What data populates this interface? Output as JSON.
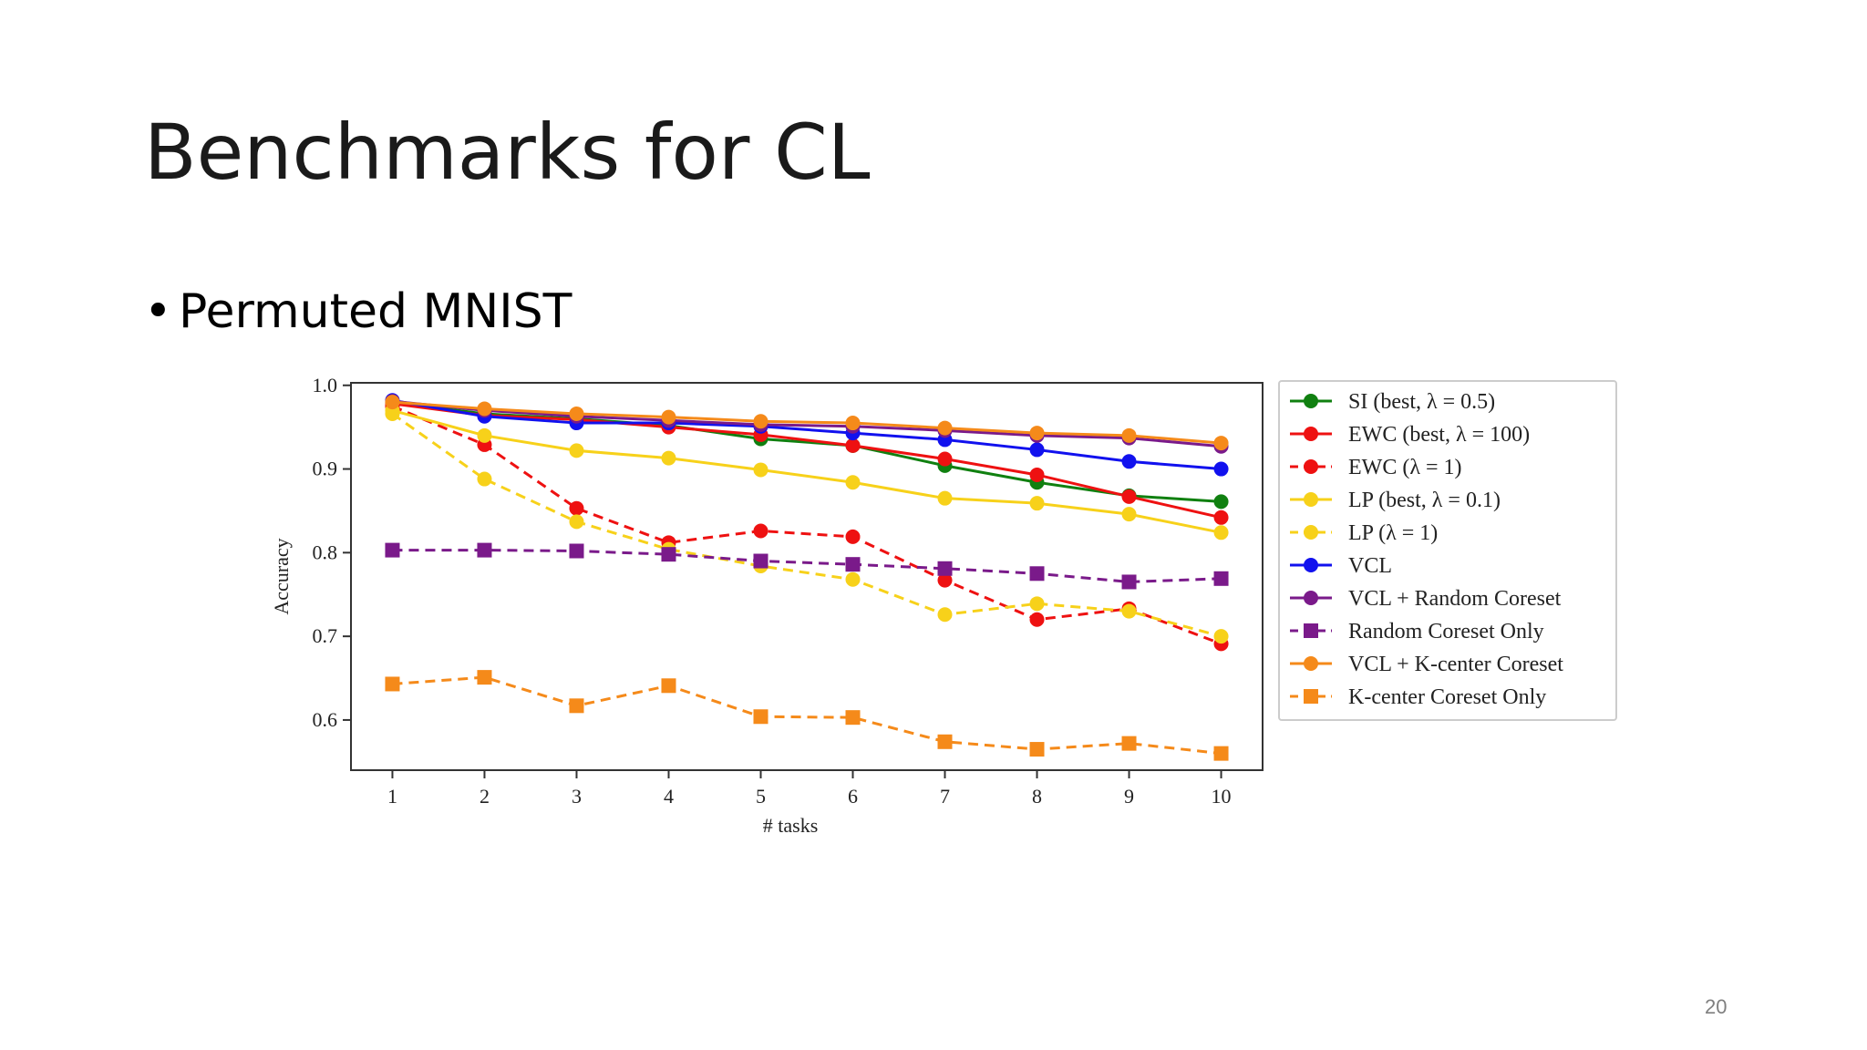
{
  "slide": {
    "title": "Benchmarks for CL",
    "bullet_marker": "•",
    "bullet_text": "Permuted MNIST",
    "page_number": "20"
  },
  "chart_data": {
    "type": "line",
    "title": "",
    "xlabel": "# tasks",
    "ylabel": "Accuracy",
    "x": [
      1,
      2,
      3,
      4,
      5,
      6,
      7,
      8,
      9,
      10
    ],
    "x_ticks": [
      "1",
      "2",
      "3",
      "4",
      "5",
      "6",
      "7",
      "8",
      "9",
      "10"
    ],
    "y_ticks": [
      "0.6",
      "0.7",
      "0.8",
      "0.9",
      "1.0"
    ],
    "y_tick_values": [
      0.6,
      0.7,
      0.8,
      0.9,
      1.0
    ],
    "ylim": [
      0.54,
      1.003
    ],
    "xlim": [
      0.55,
      10.45
    ],
    "grid": false,
    "legend_position": "outside-right",
    "series": [
      {
        "name": "SI (best, λ = 0.5)",
        "color": "#108010",
        "dash": "solid",
        "marker": "circle",
        "values": [
          0.98,
          0.966,
          0.96,
          0.952,
          0.936,
          0.928,
          0.904,
          0.884,
          0.868,
          0.861
        ]
      },
      {
        "name": "EWC (best, λ = 100)",
        "color": "#ee1111",
        "dash": "solid",
        "marker": "circle",
        "values": [
          0.978,
          0.964,
          0.959,
          0.95,
          0.941,
          0.928,
          0.912,
          0.893,
          0.867,
          0.842
        ]
      },
      {
        "name": "EWC (λ = 1)",
        "color": "#ee1111",
        "dash": "dashed",
        "marker": "circle",
        "values": [
          0.975,
          0.929,
          0.853,
          0.812,
          0.826,
          0.819,
          0.767,
          0.72,
          0.733,
          0.691
        ]
      },
      {
        "name": "LP (best, λ = 0.1)",
        "color": "#f7d11a",
        "dash": "solid",
        "marker": "circle",
        "values": [
          0.97,
          0.94,
          0.922,
          0.913,
          0.899,
          0.884,
          0.865,
          0.859,
          0.846,
          0.824
        ]
      },
      {
        "name": "LP (λ = 1)",
        "color": "#f7d11a",
        "dash": "dashed",
        "marker": "circle",
        "values": [
          0.966,
          0.888,
          0.837,
          0.804,
          0.784,
          0.768,
          0.726,
          0.739,
          0.73,
          0.7
        ]
      },
      {
        "name": "VCL",
        "color": "#1111ee",
        "dash": "solid",
        "marker": "circle",
        "values": [
          0.982,
          0.963,
          0.955,
          0.955,
          0.951,
          0.943,
          0.935,
          0.923,
          0.909,
          0.9
        ]
      },
      {
        "name": "VCL + Random Coreset",
        "color": "#7a1a8a",
        "dash": "solid",
        "marker": "circle",
        "values": [
          0.981,
          0.97,
          0.963,
          0.958,
          0.953,
          0.951,
          0.946,
          0.94,
          0.937,
          0.927
        ]
      },
      {
        "name": "Random Coreset Only",
        "color": "#7a1a8a",
        "dash": "dashed",
        "marker": "square",
        "values": [
          0.803,
          0.803,
          0.802,
          0.798,
          0.79,
          0.786,
          0.781,
          0.775,
          0.765,
          0.769
        ]
      },
      {
        "name": "VCL + K-center Coreset",
        "color": "#f58a1a",
        "dash": "solid",
        "marker": "circle",
        "values": [
          0.98,
          0.972,
          0.966,
          0.962,
          0.957,
          0.955,
          0.949,
          0.943,
          0.94,
          0.931
        ]
      },
      {
        "name": "K-center Coreset Only",
        "color": "#f58a1a",
        "dash": "dashed",
        "marker": "square",
        "values": [
          0.643,
          0.651,
          0.617,
          0.641,
          0.604,
          0.603,
          0.574,
          0.565,
          0.572,
          0.56
        ]
      }
    ]
  }
}
